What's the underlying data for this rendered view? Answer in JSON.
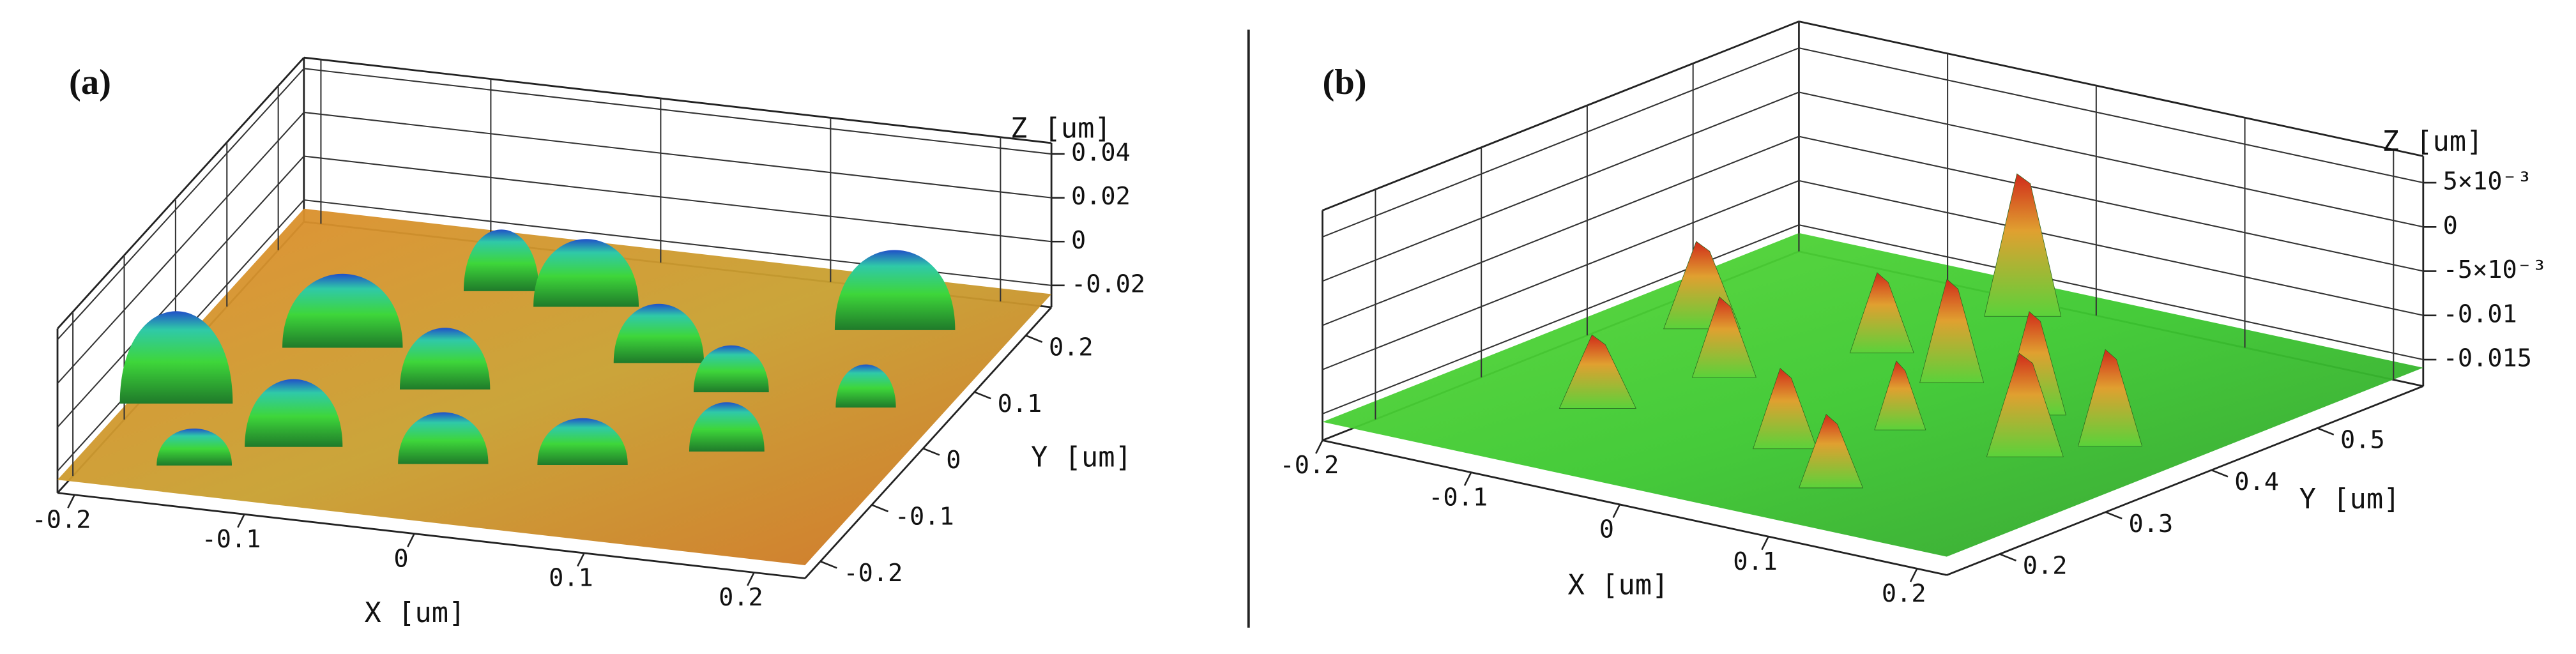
{
  "chart_data": [
    {
      "type": "surface3d",
      "title": "(a)",
      "xlabel": "X [um]",
      "ylabel": "Y [um]",
      "zlabel": "Z [um]",
      "xlim": [
        -0.21,
        0.23
      ],
      "ylim": [
        -0.23,
        0.25
      ],
      "zlim": [
        -0.03,
        0.045
      ],
      "xticks": [
        -0.2,
        -0.1,
        0,
        0.1,
        0.2
      ],
      "yticks": [
        -0.2,
        -0.1,
        0,
        0.1,
        0.2
      ],
      "zticks": [
        -0.02,
        0,
        0.02,
        0.04
      ],
      "grid": true
    },
    {
      "type": "surface3d",
      "title": "(b)",
      "xlabel": "X [um]",
      "ylabel": "Y [um]",
      "zlabel": "Z [um]",
      "xlim": [
        -0.2,
        0.22
      ],
      "ylim": [
        0.15,
        0.6
      ],
      "zlim": [
        -0.018,
        0.008
      ],
      "xticks": [
        -0.2,
        -0.1,
        0,
        0.1,
        0.2
      ],
      "yticks": [
        0.2,
        0.3,
        0.4,
        0.5
      ],
      "zticks": [
        {
          "value": 0.005,
          "label": "5×10⁻³"
        },
        0,
        {
          "value": -0.005,
          "label": "-5×10⁻³"
        },
        -0.01,
        -0.015
      ],
      "grid": true
    }
  ]
}
